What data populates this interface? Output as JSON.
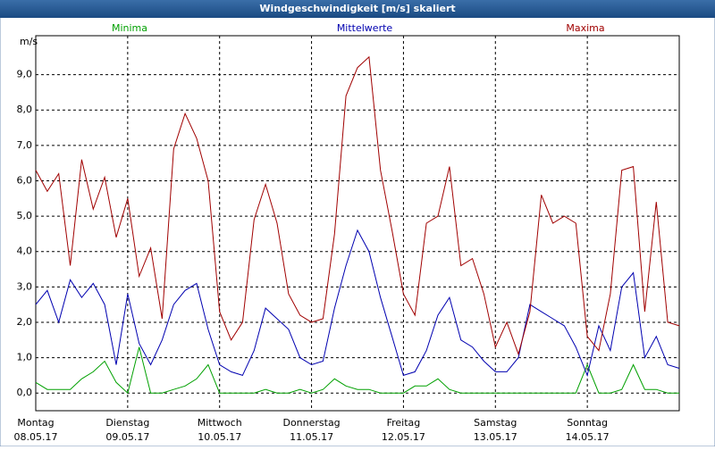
{
  "chart_data": {
    "type": "line",
    "title": "Windgeschwindigkeit [m/s] skaliert",
    "ylabel": "m/s",
    "x": [
      0,
      0.125,
      0.25,
      0.375,
      0.5,
      0.625,
      0.75,
      0.875,
      1,
      1.125,
      1.25,
      1.375,
      1.5,
      1.625,
      1.75,
      1.875,
      2,
      2.125,
      2.25,
      2.375,
      2.5,
      2.625,
      2.75,
      2.875,
      3,
      3.125,
      3.25,
      3.375,
      3.5,
      3.625,
      3.75,
      3.875,
      4,
      4.125,
      4.25,
      4.375,
      4.5,
      4.625,
      4.75,
      4.875,
      5,
      5.125,
      5.25,
      5.375,
      5.5,
      5.625,
      5.75,
      5.875,
      6,
      6.125,
      6.25,
      6.375,
      6.5,
      6.625,
      6.75,
      6.875,
      7
    ],
    "series": [
      {
        "name": "Minima",
        "color": "#00a000",
        "values": [
          0.3,
          0.1,
          0.1,
          0.1,
          0.4,
          0.6,
          0.9,
          0.3,
          0.0,
          1.3,
          0.0,
          0.0,
          0.1,
          0.2,
          0.4,
          0.8,
          0.0,
          0.0,
          0.0,
          0.0,
          0.1,
          0.0,
          0.0,
          0.1,
          0.0,
          0.1,
          0.4,
          0.2,
          0.1,
          0.1,
          0.0,
          0.0,
          0.0,
          0.2,
          0.2,
          0.4,
          0.1,
          0.0,
          0.0,
          0.0,
          0.0,
          0.0,
          0.0,
          0.0,
          0.0,
          0.0,
          0.0,
          0.0,
          0.8,
          0.0,
          0.0,
          0.1,
          0.8,
          0.1,
          0.1,
          0.0,
          0.0
        ]
      },
      {
        "name": "Mittelwerte",
        "color": "#0000b0",
        "values": [
          2.5,
          2.9,
          2.0,
          3.2,
          2.7,
          3.1,
          2.5,
          0.8,
          2.8,
          1.4,
          0.8,
          1.5,
          2.5,
          2.9,
          3.1,
          1.8,
          0.8,
          0.6,
          0.5,
          1.2,
          2.4,
          2.1,
          1.8,
          1.0,
          0.8,
          0.9,
          2.4,
          3.6,
          4.6,
          4.0,
          2.7,
          1.6,
          0.5,
          0.6,
          1.2,
          2.2,
          2.7,
          1.5,
          1.3,
          0.9,
          0.6,
          0.6,
          1.0,
          2.5,
          2.3,
          2.1,
          1.9,
          1.3,
          0.5,
          1.9,
          1.2,
          3.0,
          3.4,
          1.0,
          1.6,
          0.8,
          0.7
        ]
      },
      {
        "name": "Maxima",
        "color": "#a00000",
        "values": [
          6.3,
          5.7,
          6.2,
          3.6,
          6.6,
          5.2,
          6.1,
          4.4,
          5.5,
          3.3,
          4.1,
          2.1,
          6.9,
          7.9,
          7.2,
          6.0,
          2.3,
          1.5,
          2.0,
          4.9,
          5.9,
          4.8,
          2.8,
          2.2,
          2.0,
          2.1,
          4.5,
          8.4,
          9.2,
          9.5,
          6.3,
          4.6,
          2.8,
          2.2,
          4.8,
          5.0,
          6.4,
          3.6,
          3.8,
          2.8,
          1.3,
          2.0,
          1.1,
          2.3,
          5.6,
          4.8,
          5.0,
          4.8,
          1.6,
          1.2,
          2.8,
          6.3,
          6.4,
          2.3,
          5.4,
          2.0,
          1.9
        ]
      }
    ],
    "xlim": [
      0,
      7
    ],
    "xticks": [
      {
        "value": 0,
        "label": "Montag 08.05.17"
      },
      {
        "value": 1,
        "label": "Dienstag 09.05.17"
      },
      {
        "value": 2,
        "label": "Mittwoch 10.05.17"
      },
      {
        "value": 3,
        "label": "Donnerstag 11.05.17"
      },
      {
        "value": 4,
        "label": "Freitag 12.05.17"
      },
      {
        "value": 5,
        "label": "Samstag 13.05.17"
      },
      {
        "value": 6,
        "label": "Sonntag 14.05.17"
      }
    ],
    "ylim": [
      -0.5,
      10.1
    ],
    "yticks": [
      {
        "value": 0,
        "label": "0,0"
      },
      {
        "value": 1,
        "label": "1,0"
      },
      {
        "value": 2,
        "label": "2,0"
      },
      {
        "value": 3,
        "label": "3,0"
      },
      {
        "value": 4,
        "label": "4,0"
      },
      {
        "value": 5,
        "label": "5,0"
      },
      {
        "value": 6,
        "label": "6,0"
      },
      {
        "value": 7,
        "label": "7,0"
      },
      {
        "value": 8,
        "label": "8,0"
      },
      {
        "value": 9,
        "label": "9,0"
      }
    ],
    "grid": true
  }
}
